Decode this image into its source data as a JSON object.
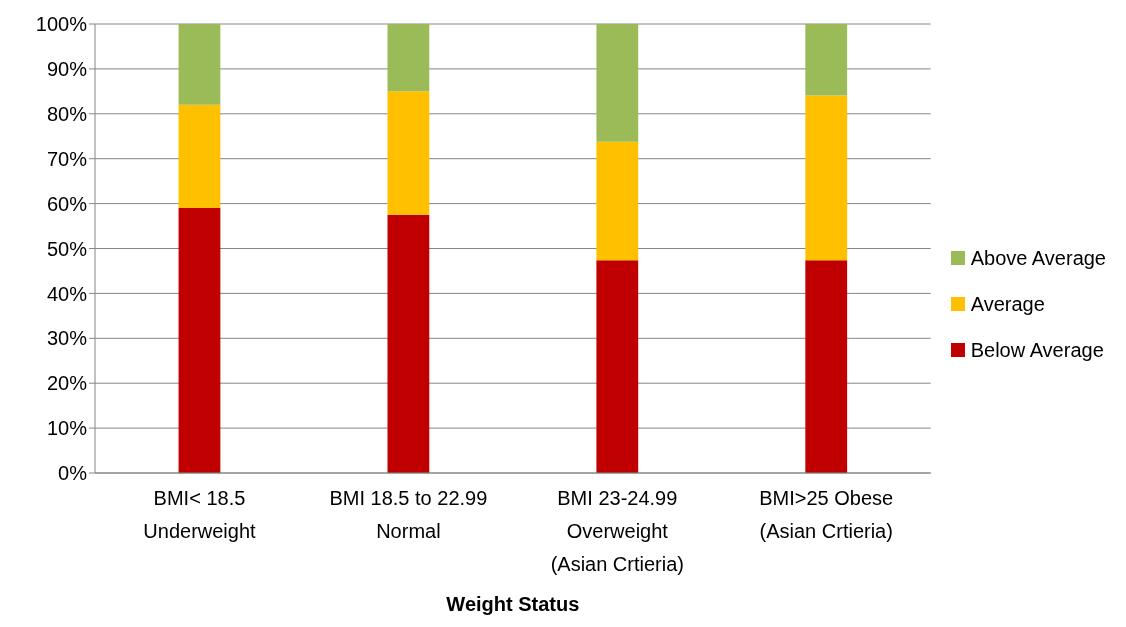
{
  "chart_data": {
    "type": "bar",
    "stacked": true,
    "xlabel": "Weight Status",
    "categories": [
      "BMI< 18.5\nUnderweight",
      "BMI 18.5 to 22.99\nNormal",
      "BMI 23-24.99\nOverweight\n(Asian Crtieria)",
      "BMI>25 Obese\n(Asian Crtieria)"
    ],
    "series": [
      {
        "name": "Below Average",
        "color": "#c00000",
        "values": [
          59,
          57.5,
          47.4,
          47.4
        ]
      },
      {
        "name": "Average",
        "color": "#ffc000",
        "values": [
          23,
          27.5,
          26.4,
          36.7
        ]
      },
      {
        "name": "Above Average",
        "color": "#9bbb59",
        "values": [
          18,
          15,
          26.2,
          15.9
        ]
      }
    ],
    "ylim": [
      0,
      100
    ],
    "yticks": [
      {
        "value": 0,
        "label": "0%"
      },
      {
        "value": 10,
        "label": "10%"
      },
      {
        "value": 20,
        "label": "20%"
      },
      {
        "value": 30,
        "label": "30%"
      },
      {
        "value": 40,
        "label": "40%"
      },
      {
        "value": 50,
        "label": "50%"
      },
      {
        "value": 60,
        "label": "60%"
      },
      {
        "value": 70,
        "label": "70%"
      },
      {
        "value": 80,
        "label": "80%"
      },
      {
        "value": 90,
        "label": "90%"
      },
      {
        "value": 100,
        "label": "100%"
      }
    ],
    "grid": "y",
    "legend": "right"
  }
}
